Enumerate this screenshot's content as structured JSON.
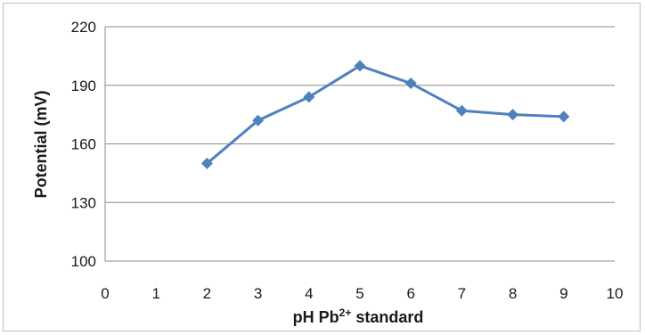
{
  "chart_data": {
    "type": "line",
    "title": "",
    "xlabel": "pH Pb2+ standard",
    "xlabel_parts": {
      "main": "pH Pb",
      "sup": "2+",
      "rest": " standard"
    },
    "ylabel": "Potential (mV)",
    "xlim": [
      0,
      10
    ],
    "ylim": [
      100,
      220
    ],
    "x_ticks": [
      0,
      1,
      2,
      3,
      4,
      5,
      6,
      7,
      8,
      9,
      10
    ],
    "y_ticks": [
      100,
      130,
      160,
      190,
      220
    ],
    "grid": {
      "horizontal": true,
      "vertical": false
    },
    "legend": "none",
    "series": [
      {
        "marker": "diamond",
        "color": "#4f81bd",
        "x": [
          2,
          3,
          4,
          5,
          6,
          7,
          8,
          9
        ],
        "y": [
          150,
          172,
          184,
          200,
          191,
          177,
          175,
          174
        ]
      }
    ]
  }
}
